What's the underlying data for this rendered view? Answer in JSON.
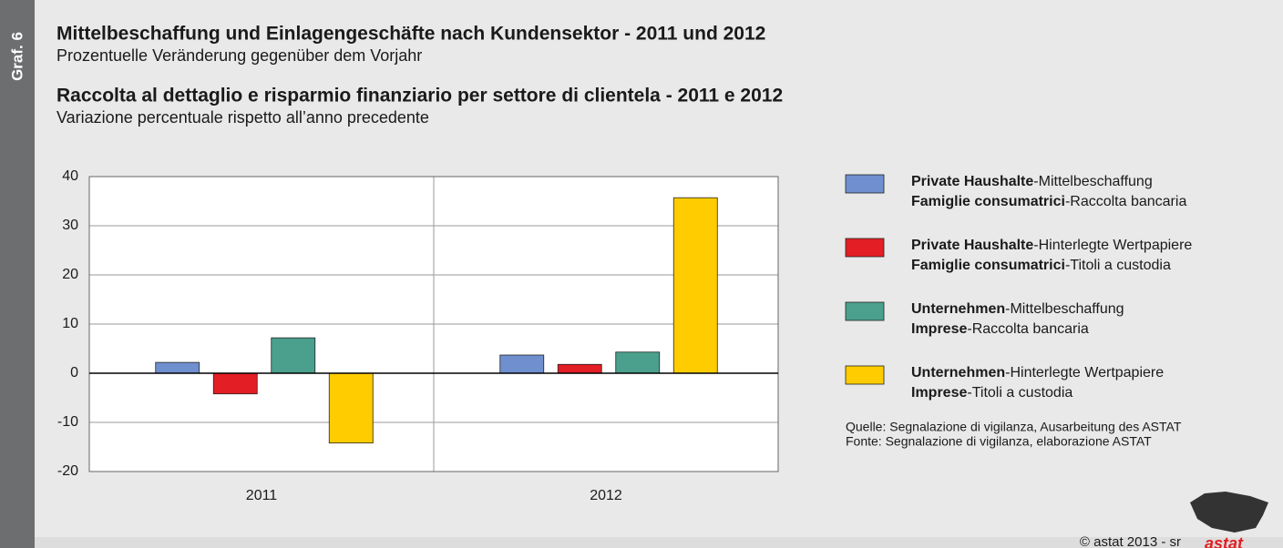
{
  "chart_data": {
    "type": "bar",
    "label": "Graf. 6",
    "title": "Mittelbeschaffung und Einlagengeschäfte nach Kundensektor - 2011 und 2012",
    "subtitle": "Prozentuelle Veränderung gegenüber dem Vorjahr",
    "title_2": "Raccolta al dettaglio e risparmio finanziario per settore di clientela - 2011 e 2012",
    "subtitle_2": "Variazione percentuale rispetto all’anno precedente",
    "categories": [
      "2011",
      "2012"
    ],
    "series": [
      {
        "name": [
          [
            "Private Haushalte",
            "-Mittelbeschaffung"
          ],
          [
            "Famiglie consumatrici",
            "-Raccolta bancaria"
          ]
        ],
        "color": "#6f8fcf",
        "values": [
          2.2,
          3.7
        ]
      },
      {
        "name": [
          [
            "Private Haushalte",
            "-Hinterlegte Wertpapiere"
          ],
          [
            "Famiglie consumatrici",
            "-Titoli a custodia"
          ]
        ],
        "color": "#e31e24",
        "values": [
          -4.2,
          1.8
        ]
      },
      {
        "name": [
          [
            "Unternehmen",
            "-Mittelbeschaffung"
          ],
          [
            "Imprese",
            "-Raccolta bancaria"
          ]
        ],
        "color": "#4aa08c",
        "values": [
          7.2,
          4.3
        ]
      },
      {
        "name": [
          [
            "Unternehmen",
            "-Hinterlegte Wertpapiere"
          ],
          [
            "Imprese",
            "-Titoli a custodia"
          ]
        ],
        "color": "#ffcc00",
        "values": [
          -14.2,
          35.7
        ]
      }
    ],
    "ylim": [
      -20,
      40
    ],
    "yticks": [
      -20,
      -10,
      0,
      10,
      20,
      30,
      40
    ],
    "grid": true,
    "source": [
      "Quelle: Segnalazione di vigilanza, Ausarbeitung des ASTAT",
      "Fonte: Segnalazione di vigilanza, elaborazione ASTAT"
    ],
    "credit": "© astat 2013 - sr",
    "logo": "astat"
  }
}
